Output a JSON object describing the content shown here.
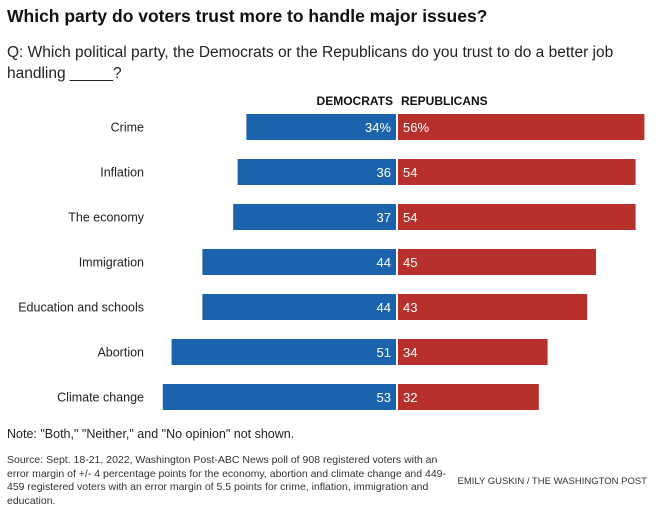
{
  "title": "Which party do voters trust more to handle major issues?",
  "subtitle": "Q: Which political party, the Democrats or the Republicans do you trust to do a better job handling _____?",
  "note": "Note: \"Both,\" \"Neither,\" and \"No opinion\" not shown.",
  "source": "Source: Sept. 18-21, 2022, Washington Post-ABC News poll of 908 registered voters with an error margin of +/- 4 percentage points for the economy, abortion and climate change and 449-459 registered voters with an error margin of 5.5 points for crime, inflation, immigration and education.",
  "credit": "EMILY GUSKIN / THE WASHINGTON POST",
  "colors": {
    "democrats": "#1b64ad",
    "republicans": "#b8302b"
  },
  "chart_data": {
    "type": "bar",
    "orientation": "diverging-horizontal",
    "categories": [
      "Crime",
      "Inflation",
      "The economy",
      "Immigration",
      "Education and schools",
      "Abortion",
      "Climate change"
    ],
    "series": [
      {
        "name": "DEMOCRATS",
        "values": [
          34,
          36,
          37,
          44,
          44,
          51,
          53
        ],
        "labels": [
          "34%",
          "36",
          "37",
          "44",
          "44",
          "51",
          "53"
        ]
      },
      {
        "name": "REPUBLICANS",
        "values": [
          56,
          54,
          54,
          45,
          43,
          34,
          32
        ],
        "labels": [
          "56%",
          "54",
          "54",
          "45",
          "43",
          "34",
          "32"
        ]
      }
    ],
    "xlim": [
      0,
      60
    ]
  }
}
